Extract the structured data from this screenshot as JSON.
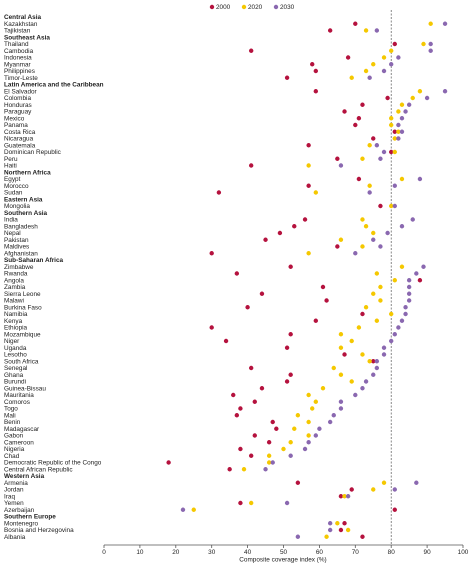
{
  "chart_data": {
    "type": "dot",
    "x_label": "Composite coverage index (%)",
    "xlim": [
      0,
      100
    ],
    "xticks": [
      0,
      10,
      20,
      30,
      40,
      50,
      60,
      70,
      80,
      90,
      100
    ],
    "reference_line": 80,
    "categories": [
      "Central Asia",
      "Kazakhstan",
      "Tajikistan",
      "Southeast Asia",
      "Thailand",
      "Cambodia",
      "Indonesia",
      "Myanmar",
      "Philippines",
      "Timor-Leste",
      "Latin America and the Caribbean",
      "El Salvador",
      "Colombia",
      "Honduras",
      "Paraguay",
      "Mexico",
      "Panama",
      "Costa Rica",
      "Nicaragua",
      "Guatemala",
      "Dominican Republic",
      "Peru",
      "Haiti",
      "Northern Africa",
      "Egypt",
      "Morocco",
      "Sudan",
      "Eastern Asia",
      "Mongolia",
      "Southern Asia",
      "India",
      "Bangladesh",
      "Nepal",
      "Pakistan",
      "Maldives",
      "Afghanistan",
      "Sub-Saharan Africa",
      "Zimbabwe",
      "Rwanda",
      "Angola",
      "Zambia",
      "Sierra Leone",
      "Malawi",
      "Burkina Faso",
      "Namibia",
      "Kenya",
      "Ethiopia",
      "Mozambique",
      "Niger",
      "Uganda",
      "Lesotho",
      "South Africa",
      "Senegal",
      "Ghana",
      "Burundi",
      "Guinea-Bissau",
      "Mauritania",
      "Comoros",
      "Togo",
      "Mali",
      "Benin",
      "Madagascar",
      "Gabon",
      "Cameroon",
      "Nigeria",
      "Chad",
      "Democratic Republic of the Congo",
      "Central African Republic",
      "Western Asia",
      "Armenia",
      "Jordan",
      "Iraq",
      "Yemen",
      "Azerbaijan",
      "Southern Europe",
      "Montenegro",
      "Bosnia and Herzegovina",
      "Albania"
    ],
    "series": [
      {
        "name": "2000",
        "color": "#b5123e",
        "values": [
          null,
          70,
          63,
          null,
          81,
          41,
          68,
          58,
          59,
          51,
          null,
          59,
          79,
          72,
          67,
          71,
          70,
          81,
          75,
          57,
          80,
          65,
          41,
          null,
          71,
          57,
          32,
          null,
          77,
          null,
          56,
          53,
          49,
          45,
          65,
          30,
          null,
          52,
          37,
          88,
          61,
          44,
          62,
          40,
          72,
          59,
          30,
          52,
          34,
          51,
          67,
          75,
          41,
          52,
          51,
          44,
          36,
          42,
          38,
          37,
          47,
          48,
          42,
          46,
          38,
          41,
          18,
          35,
          null,
          54,
          69,
          66,
          38,
          81,
          null,
          67,
          66,
          72
        ]
      },
      {
        "name": "2020",
        "color": "#f5c800",
        "values": [
          null,
          91,
          73,
          null,
          89,
          80,
          78,
          75,
          73,
          69,
          null,
          88,
          86,
          83,
          82,
          80,
          80,
          82,
          81,
          74,
          81,
          72,
          57,
          null,
          83,
          74,
          59,
          null,
          80,
          null,
          72,
          73,
          75,
          66,
          72,
          57,
          null,
          83,
          76,
          81,
          77,
          75,
          77,
          73,
          80,
          76,
          71,
          66,
          69,
          66,
          72,
          74,
          64,
          66,
          69,
          61,
          57,
          59,
          58,
          54,
          57,
          53,
          57,
          52,
          50,
          46,
          46,
          39,
          null,
          78,
          75,
          67,
          41,
          25,
          null,
          65,
          68,
          62
        ]
      },
      {
        "name": "2030",
        "color": "#8a68b0",
        "values": [
          null,
          95,
          76,
          null,
          91,
          91,
          82,
          80,
          78,
          74,
          null,
          95,
          90,
          85,
          84,
          83,
          82,
          83,
          82,
          76,
          78,
          77,
          66,
          null,
          88,
          81,
          74,
          null,
          81,
          null,
          86,
          83,
          79,
          75,
          77,
          70,
          null,
          89,
          87,
          85,
          85,
          85,
          85,
          84,
          84,
          83,
          82,
          81,
          80,
          78,
          78,
          76,
          76,
          75,
          73,
          72,
          70,
          66,
          66,
          64,
          63,
          60,
          59,
          57,
          56,
          52,
          47,
          45,
          null,
          87,
          81,
          68,
          51,
          22,
          null,
          63,
          63,
          54
        ]
      }
    ]
  }
}
